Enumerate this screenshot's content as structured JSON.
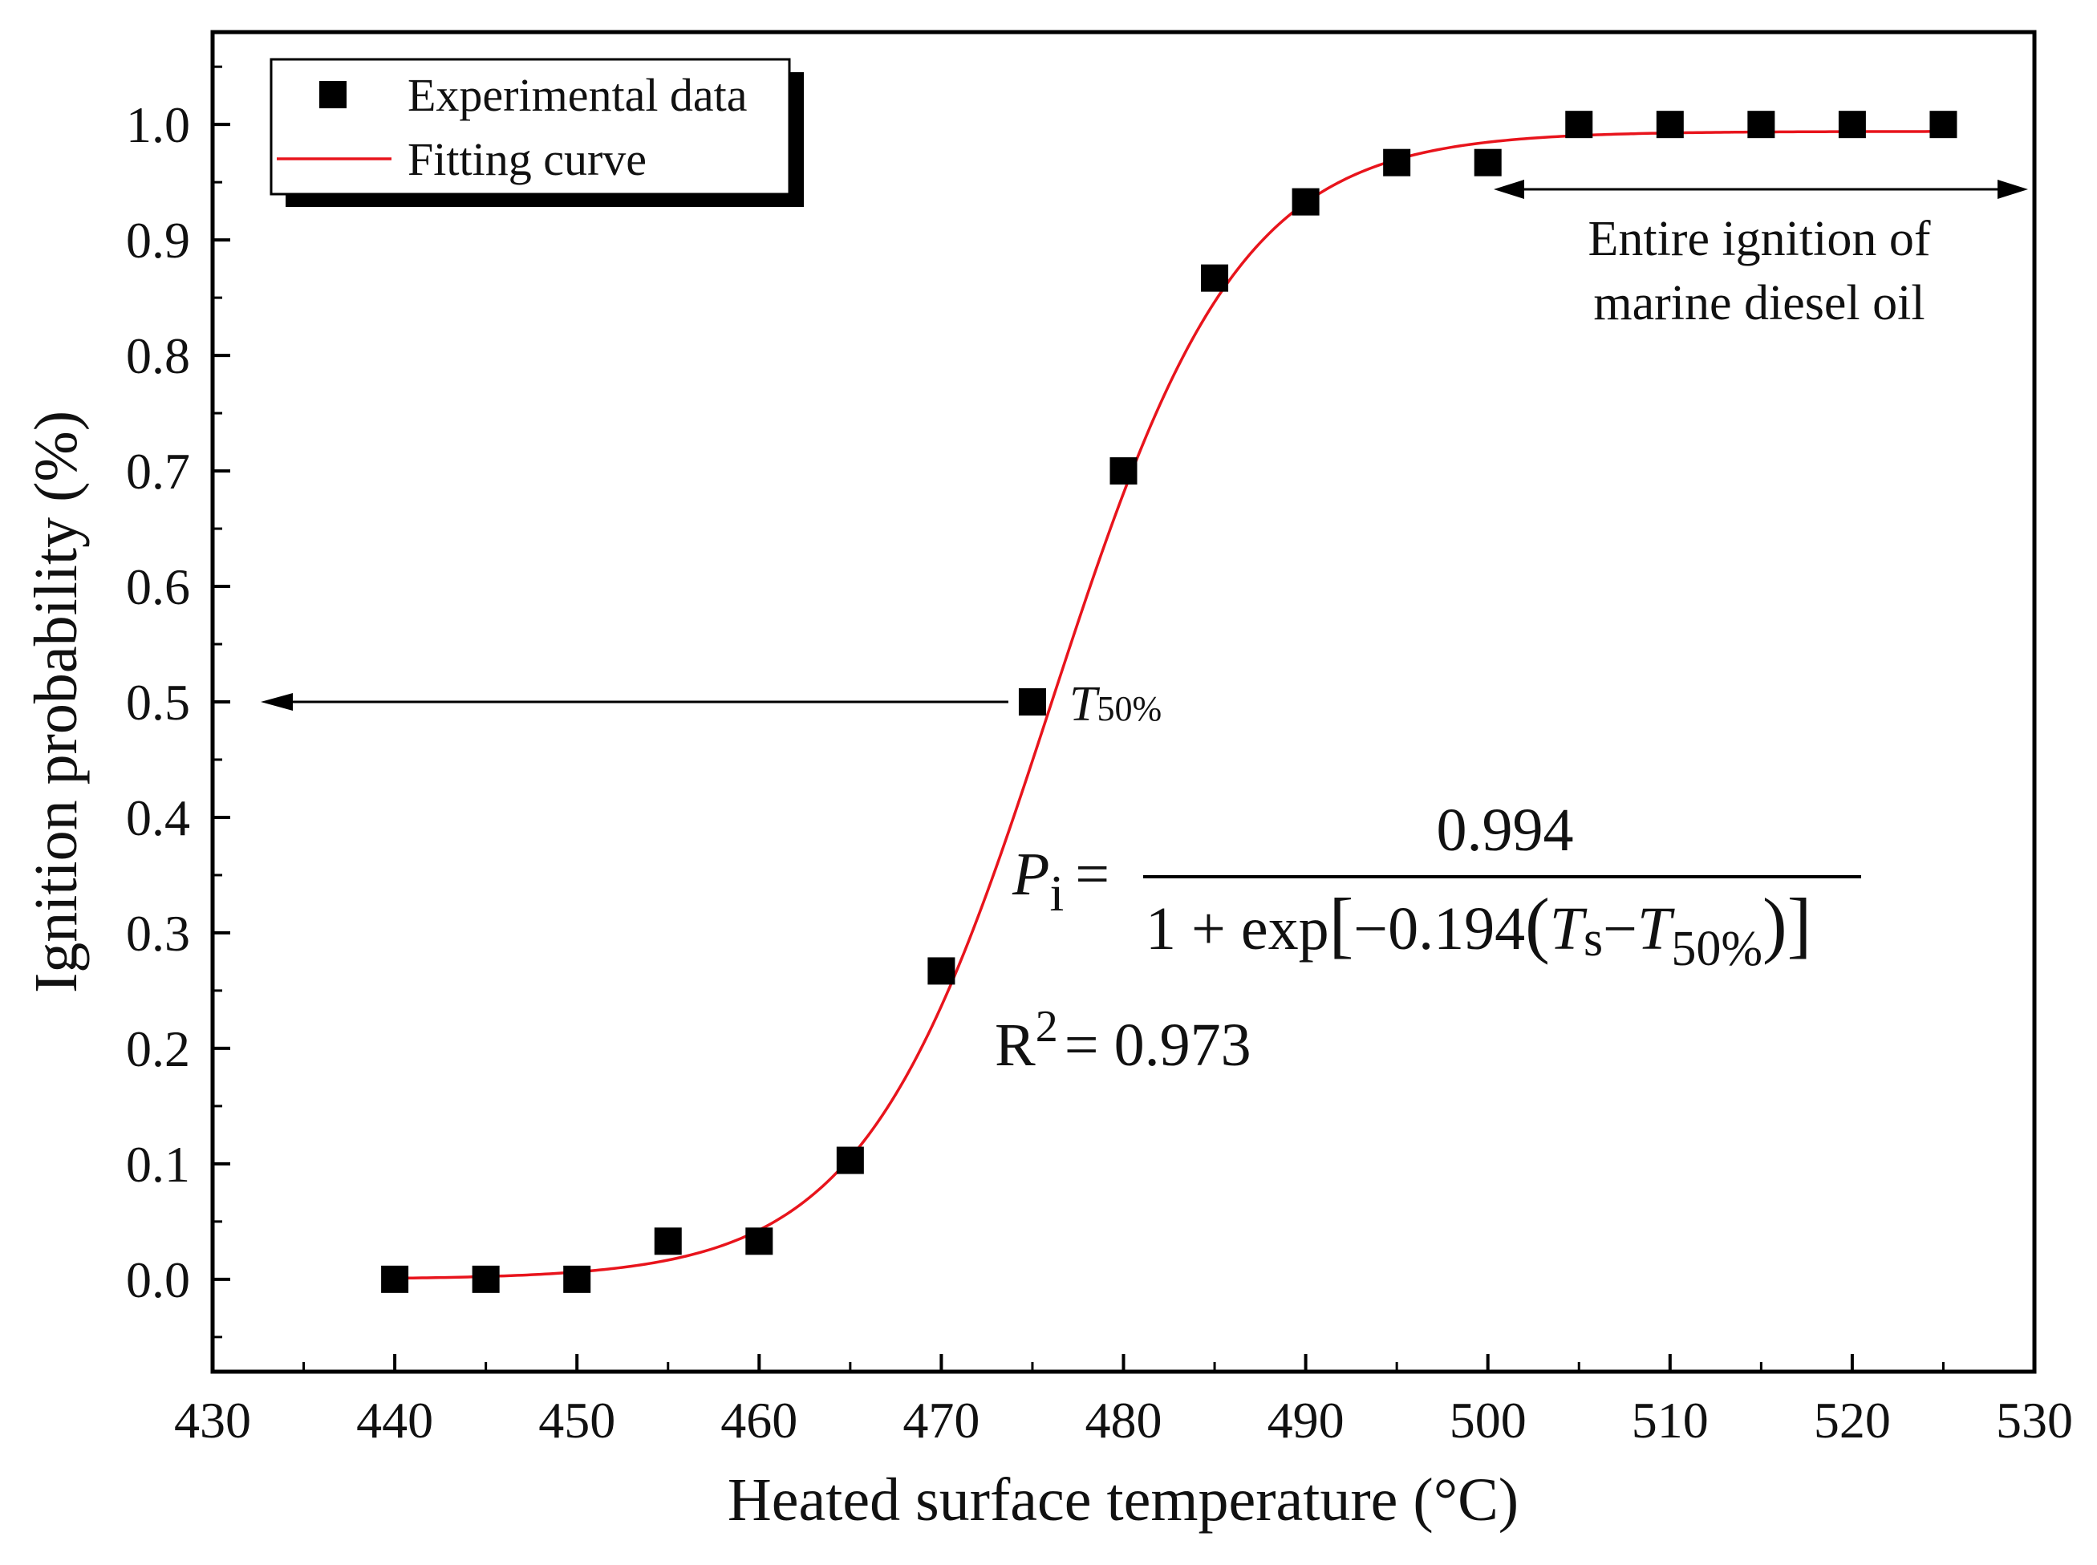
{
  "chart_data": {
    "type": "scatter",
    "xlabel": "Heated surface temperature (°C)",
    "ylabel": "Ignition probability (%)",
    "xlim": [
      430,
      530
    ],
    "ylim": [
      -0.08,
      1.08
    ],
    "xticks": [
      430,
      440,
      450,
      460,
      470,
      480,
      490,
      500,
      510,
      520,
      530
    ],
    "yticks": [
      0.0,
      0.1,
      0.2,
      0.3,
      0.4,
      0.5,
      0.6,
      0.7,
      0.8,
      0.9,
      1.0
    ],
    "series": [
      {
        "name": "Experimental data",
        "marker": "square",
        "color": "#000000",
        "x": [
          440,
          445,
          450,
          455,
          460,
          465,
          470,
          475,
          480,
          485,
          490,
          495,
          500,
          505,
          510,
          515,
          520,
          525
        ],
        "y": [
          0.0,
          0.0,
          0.0,
          0.033,
          0.033,
          0.103,
          0.267,
          0.5,
          0.7,
          0.867,
          0.933,
          0.967,
          0.967,
          1.0,
          1.0,
          1.0,
          1.0,
          1.0
        ]
      },
      {
        "name": "Fitting curve",
        "type": "line",
        "color": "#e8141c",
        "model": "logistic",
        "amplitude": 0.994,
        "rate": 0.194,
        "t50": 476,
        "x_range": [
          440,
          525
        ]
      }
    ],
    "legend": {
      "position": "top-left",
      "entries": [
        "Experimental data",
        "Fitting curve"
      ]
    },
    "annotations": {
      "t50_label": "T",
      "t50_sub": "50%",
      "ignition_line1": "Entire ignition of",
      "ignition_line2": "marine diesel oil",
      "equation": {
        "lhs": "P",
        "lhs_sub": "i",
        "equals": "=",
        "numerator": "0.994",
        "den_start": "1 + exp",
        "den_coef": "−0.194",
        "den_ts": "T",
        "den_ts_sub": "s",
        "den_minus": "−",
        "den_t50": "T",
        "den_t50_sub": "50%"
      },
      "r2_base": "R",
      "r2_exp": "2",
      "r2_value": "= 0.973"
    }
  }
}
